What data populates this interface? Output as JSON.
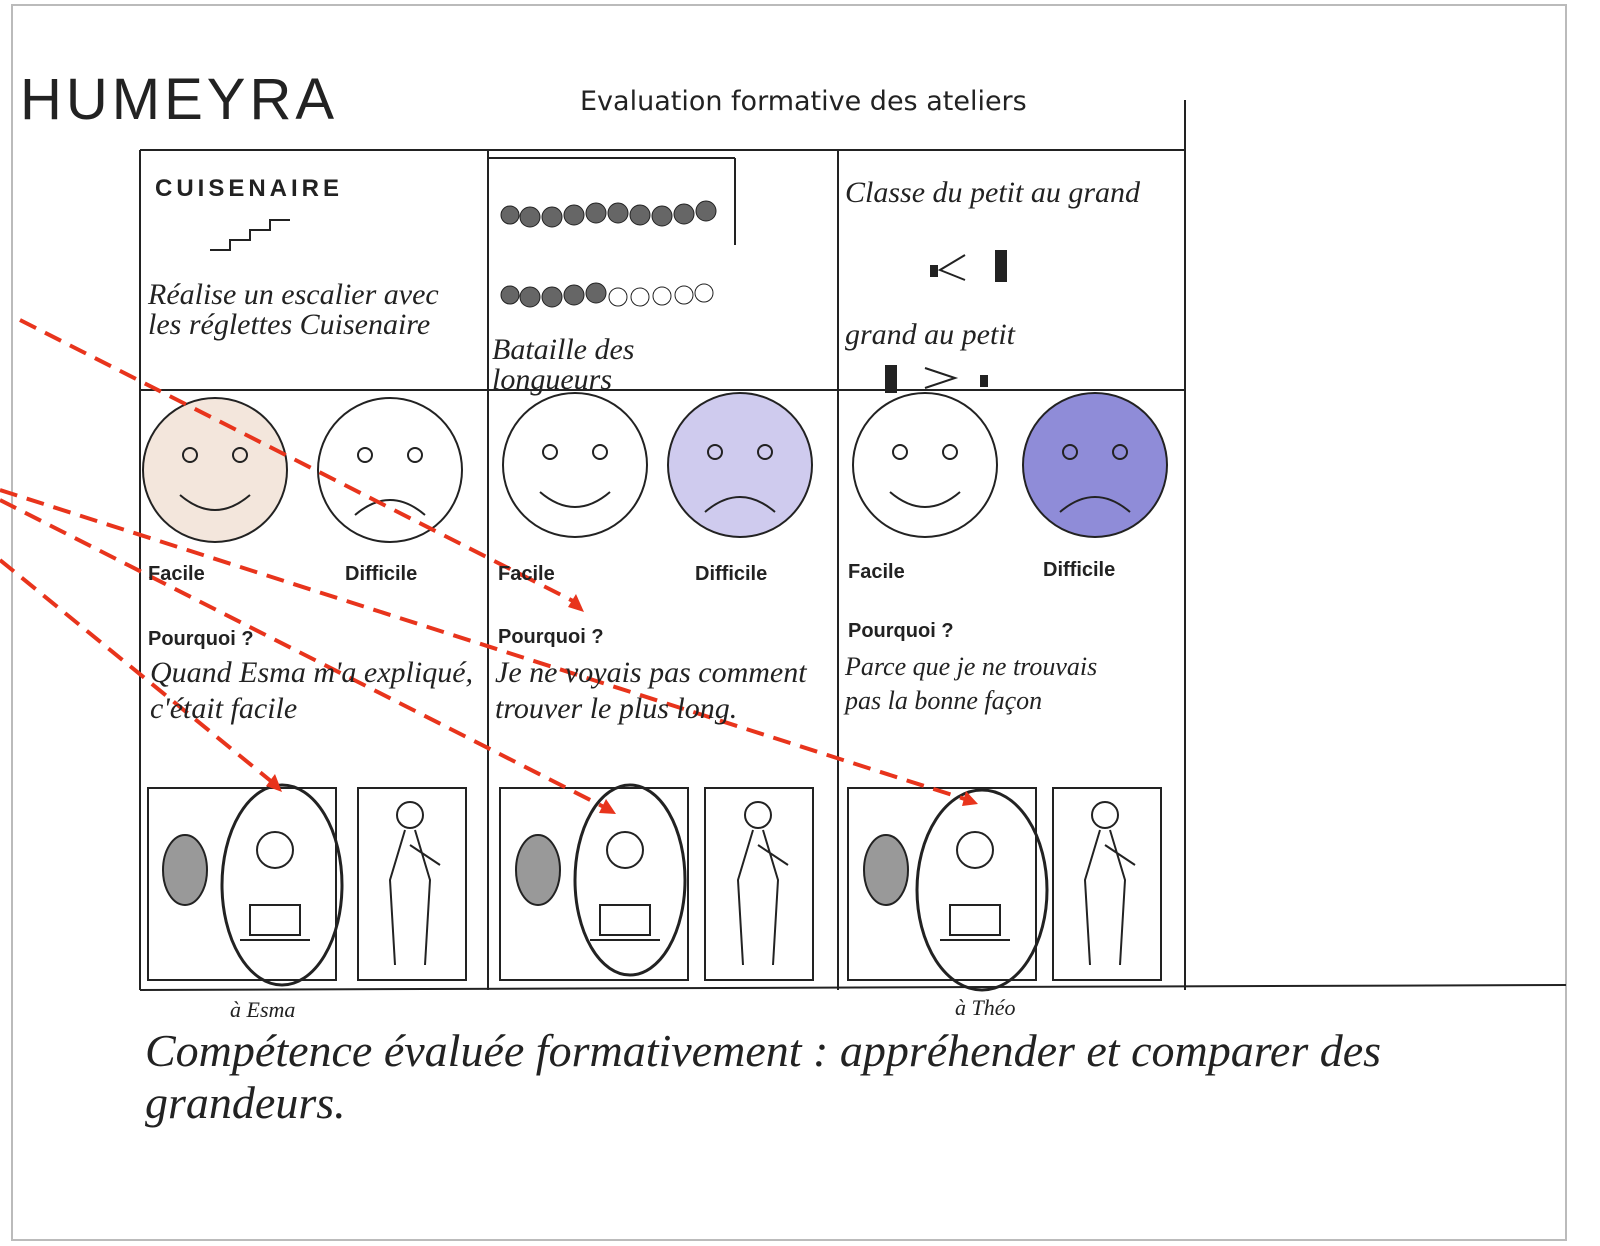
{
  "header": {
    "name": "HUMEYRA",
    "title": "Evaluation formative des ateliers"
  },
  "columns": [
    {
      "heading": "CUISENAIRE",
      "task": "Réalise un escalier avec les réglettes Cuisenaire",
      "easy": "Facile",
      "hard": "Difficile",
      "why_label": "Pourquoi ?",
      "why": "Quand Esma m'a expliqué, c'était facile",
      "note": "à Esma"
    },
    {
      "task": "Bataille des longueurs",
      "easy": "Facile",
      "hard": "Difficile",
      "why_label": "Pourquoi ?",
      "why": "Je ne voyais pas comment trouver le plus long."
    },
    {
      "task": "Classe du petit au grand",
      "task_2": "grand au petit",
      "easy": "Facile",
      "hard": "Difficile",
      "why_label": "Pourquoi ?",
      "why": "Parce que je ne trouvais pas la bonne façon",
      "note": "à Théo"
    }
  ],
  "footer": "Compétence évaluée formativement : appréhender et comparer des grandeurs."
}
